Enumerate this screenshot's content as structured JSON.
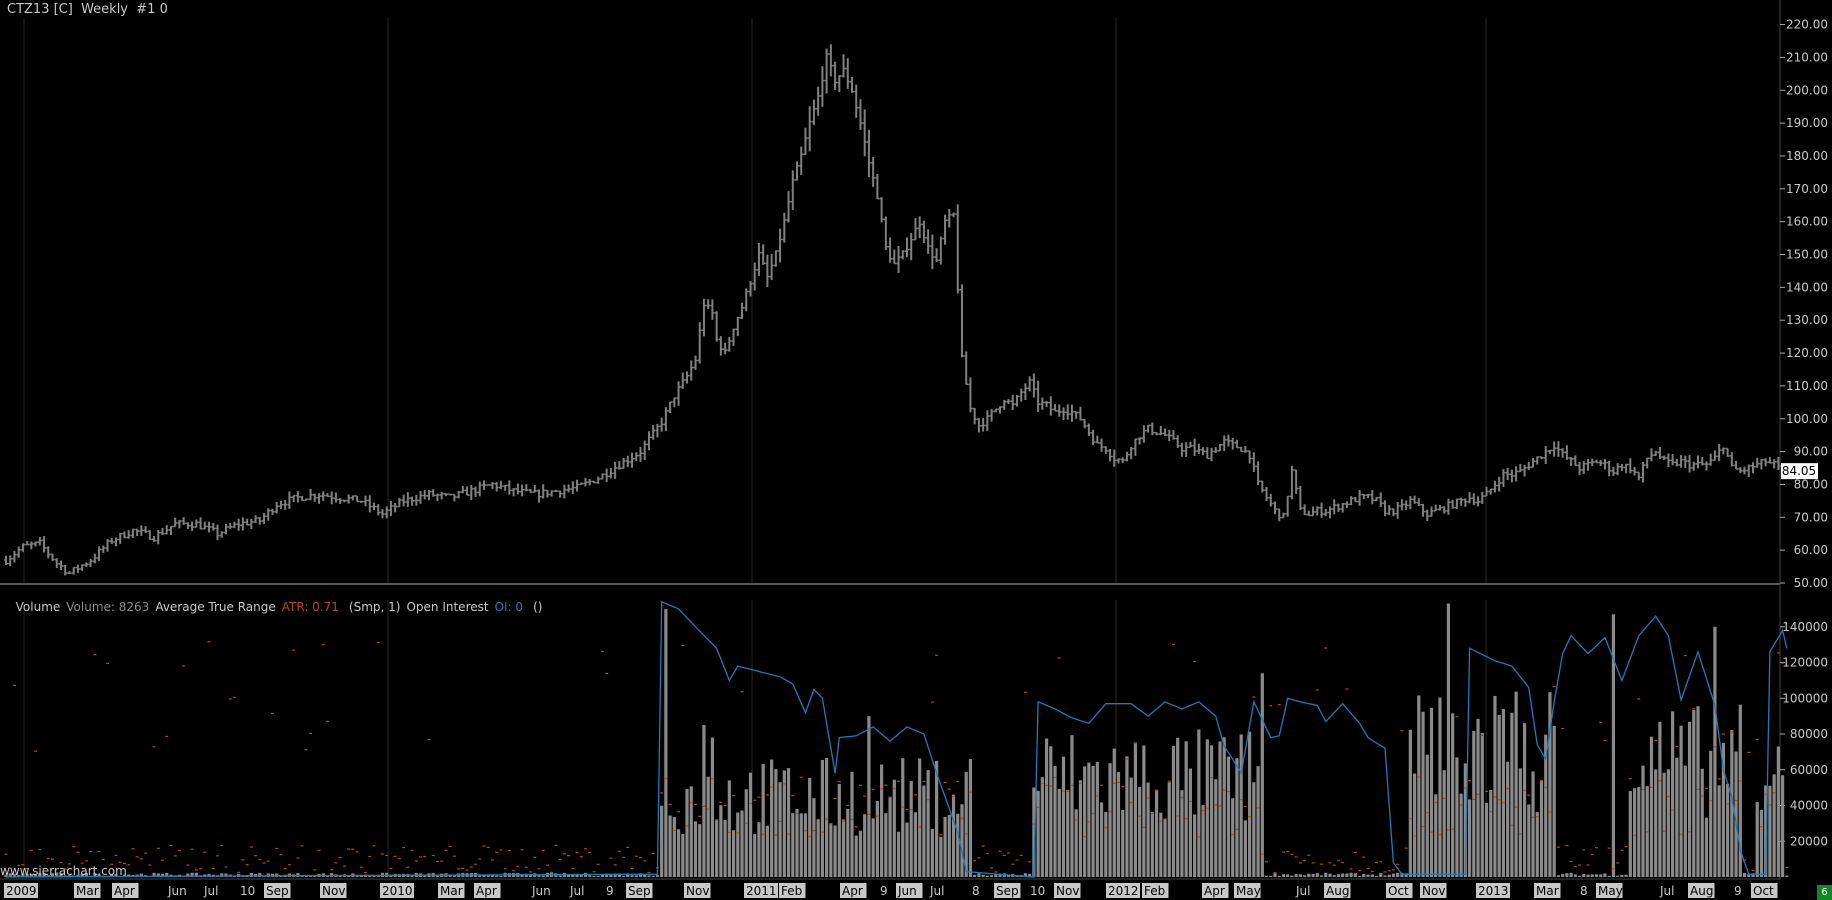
{
  "header": {
    "title": "CTZ13 [C]  Weekly  #1 0"
  },
  "study_header": {
    "volume_label": "Volume",
    "volume_value": "Volume: 8263",
    "atr_label": "Average True Range",
    "atr_value": "ATR: 0.71",
    "atr_params": "(Smp, 1)",
    "oi_label": "Open Interest",
    "oi_value": "OI: 0",
    "oi_params": "()"
  },
  "watermark": "www.sierrachart.com",
  "corner_badge": "6",
  "price_marker": "84.05",
  "colors": {
    "background": "#000000",
    "bars": "#808080",
    "volume_bars": "#8a8a8a",
    "open_interest": "#1f7ab8",
    "atr": "#b04a18",
    "axis_text": "#c8c8c8",
    "divider": "#777777",
    "gridline": "#262626",
    "price_marker_bg": "#ffffff",
    "badge": "#0f8a23"
  },
  "chart_data": [
    {
      "type": "ohlc",
      "name": "CTZ13 weekly price",
      "y_ticks": [
        "50.00",
        "60.00",
        "70.00",
        "80.00",
        "90.00",
        "100.00",
        "110.00",
        "120.00",
        "130.00",
        "140.00",
        "150.00",
        "160.00",
        "170.00",
        "180.00",
        "190.00",
        "200.00",
        "210.00",
        "220.00"
      ],
      "ylim": [
        50,
        222
      ],
      "last_price": 84.05,
      "anchors": [
        [
          0,
          57
        ],
        [
          4,
          61
        ],
        [
          8,
          62
        ],
        [
          12,
          56
        ],
        [
          15,
          53
        ],
        [
          20,
          57
        ],
        [
          25,
          63
        ],
        [
          30,
          66
        ],
        [
          35,
          64
        ],
        [
          40,
          68
        ],
        [
          45,
          68
        ],
        [
          50,
          65
        ],
        [
          55,
          68
        ],
        [
          60,
          69
        ],
        [
          64,
          74
        ],
        [
          69,
          76
        ],
        [
          74,
          77
        ],
        [
          79,
          76
        ],
        [
          84,
          75
        ],
        [
          89,
          71
        ],
        [
          94,
          75
        ],
        [
          100,
          77
        ],
        [
          105,
          76
        ],
        [
          110,
          78
        ],
        [
          115,
          80
        ],
        [
          120,
          78
        ],
        [
          125,
          77
        ],
        [
          130,
          78
        ],
        [
          135,
          79
        ],
        [
          140,
          82
        ],
        [
          145,
          86
        ],
        [
          150,
          90
        ],
        [
          155,
          99
        ],
        [
          158,
          107
        ],
        [
          161,
          113
        ],
        [
          163,
          118
        ],
        [
          165,
          135
        ],
        [
          167,
          132
        ],
        [
          168,
          124
        ],
        [
          170,
          120
        ],
        [
          172,
          128
        ],
        [
          174,
          134
        ],
        [
          176,
          142
        ],
        [
          178,
          150
        ],
        [
          180,
          143
        ],
        [
          182,
          150
        ],
        [
          184,
          160
        ],
        [
          186,
          172
        ],
        [
          188,
          180
        ],
        [
          190,
          190
        ],
        [
          192,
          198
        ],
        [
          194,
          210
        ],
        [
          196,
          203
        ],
        [
          198,
          206
        ],
        [
          200,
          200
        ],
        [
          202,
          190
        ],
        [
          204,
          178
        ],
        [
          206,
          168
        ],
        [
          208,
          152
        ],
        [
          210,
          147
        ],
        [
          212,
          150
        ],
        [
          214,
          155
        ],
        [
          216,
          160
        ],
        [
          218,
          152
        ],
        [
          220,
          148
        ],
        [
          222,
          160
        ],
        [
          224,
          162
        ],
        [
          226,
          118
        ],
        [
          228,
          103
        ],
        [
          230,
          98
        ],
        [
          232,
          100
        ],
        [
          234,
          103
        ],
        [
          236,
          106
        ],
        [
          238,
          104
        ],
        [
          240,
          108
        ],
        [
          242,
          111
        ],
        [
          244,
          105
        ],
        [
          246,
          104
        ],
        [
          248,
          102
        ],
        [
          250,
          103
        ],
        [
          252,
          102
        ],
        [
          254,
          100
        ],
        [
          256,
          96
        ],
        [
          258,
          92
        ],
        [
          260,
          91
        ],
        [
          262,
          88
        ],
        [
          264,
          87
        ],
        [
          266,
          92
        ],
        [
          268,
          95
        ],
        [
          270,
          97
        ],
        [
          272,
          96
        ],
        [
          274,
          95
        ],
        [
          276,
          93
        ],
        [
          278,
          91
        ],
        [
          280,
          91
        ],
        [
          282,
          90
        ],
        [
          284,
          89
        ],
        [
          286,
          91
        ],
        [
          288,
          93
        ],
        [
          290,
          92
        ],
        [
          292,
          91
        ],
        [
          294,
          89
        ],
        [
          296,
          80
        ],
        [
          298,
          76
        ],
        [
          300,
          72
        ],
        [
          302,
          70
        ],
        [
          304,
          84
        ],
        [
          306,
          72
        ],
        [
          308,
          71
        ],
        [
          310,
          72
        ],
        [
          312,
          72
        ],
        [
          314,
          73
        ],
        [
          316,
          74
        ],
        [
          318,
          75
        ],
        [
          320,
          76
        ],
        [
          322,
          76
        ],
        [
          324,
          75
        ],
        [
          326,
          72
        ],
        [
          328,
          72
        ],
        [
          330,
          73
        ],
        [
          332,
          75
        ],
        [
          334,
          73
        ],
        [
          336,
          71
        ],
        [
          338,
          72
        ],
        [
          340,
          73
        ],
        [
          342,
          74
        ],
        [
          344,
          75
        ],
        [
          346,
          76
        ],
        [
          348,
          75
        ],
        [
          350,
          77
        ],
        [
          352,
          80
        ],
        [
          354,
          83
        ],
        [
          356,
          83
        ],
        [
          358,
          84
        ],
        [
          360,
          86
        ],
        [
          362,
          88
        ],
        [
          364,
          90
        ],
        [
          366,
          92
        ],
        [
          368,
          89
        ],
        [
          370,
          87
        ],
        [
          372,
          85
        ],
        [
          374,
          86
        ],
        [
          376,
          87
        ],
        [
          378,
          86
        ],
        [
          380,
          84
        ],
        [
          382,
          86
        ],
        [
          384,
          85
        ],
        [
          386,
          82
        ],
        [
          388,
          88
        ],
        [
          390,
          90
        ],
        [
          392,
          87
        ],
        [
          394,
          86
        ],
        [
          396,
          87
        ],
        [
          398,
          86
        ],
        [
          400,
          86
        ],
        [
          402,
          86
        ],
        [
          404,
          88
        ],
        [
          406,
          92
        ],
        [
          408,
          85
        ],
        [
          410,
          84
        ],
        [
          412,
          85
        ],
        [
          414,
          86
        ],
        [
          416,
          87
        ],
        [
          418,
          86
        ],
        [
          420,
          84
        ]
      ]
    },
    {
      "type": "bar",
      "name": "Volume",
      "ylim": [
        0,
        155000
      ],
      "y_ticks": [
        "20000",
        "40000",
        "60000",
        "80000",
        "100000",
        "120000",
        "140000"
      ],
      "last_value": 8263,
      "active_segments": [
        [
          155,
          228,
          50000,
          20
        ],
        [
          243,
          296,
          62000,
          21
        ],
        [
          332,
          366,
          80000,
          22
        ],
        [
          384,
          410,
          72000,
          23
        ],
        [
          414,
          420,
          45000,
          24
        ]
      ],
      "spikes": [
        [
          156,
          150000
        ],
        [
          165,
          85000
        ],
        [
          167,
          78000
        ],
        [
          204,
          90000
        ],
        [
          228,
          66000
        ],
        [
          297,
          114000
        ],
        [
          341,
          153000
        ],
        [
          380,
          147000
        ],
        [
          404,
          140000
        ],
        [
          419,
          73000
        ]
      ]
    },
    {
      "type": "line",
      "name": "Open Interest",
      "anchors": [
        [
          0,
          0
        ],
        [
          143,
          1500
        ],
        [
          154,
          1500
        ],
        [
          155,
          154000
        ],
        [
          159,
          150000
        ],
        [
          163,
          140000
        ],
        [
          168,
          128000
        ],
        [
          171,
          110000
        ],
        [
          173,
          118000
        ],
        [
          178,
          115000
        ],
        [
          183,
          112000
        ],
        [
          186,
          108000
        ],
        [
          189,
          92000
        ],
        [
          191,
          105000
        ],
        [
          193,
          100000
        ],
        [
          196,
          58000
        ],
        [
          197,
          78000
        ],
        [
          201,
          79000
        ],
        [
          205,
          84000
        ],
        [
          209,
          76000
        ],
        [
          213,
          84000
        ],
        [
          217,
          80000
        ],
        [
          220,
          58000
        ],
        [
          225,
          25000
        ],
        [
          227,
          3000
        ],
        [
          243,
          0
        ],
        [
          244,
          98000
        ],
        [
          248,
          94000
        ],
        [
          252,
          89000
        ],
        [
          256,
          86000
        ],
        [
          260,
          97000
        ],
        [
          266,
          97000
        ],
        [
          270,
          90000
        ],
        [
          274,
          98000
        ],
        [
          278,
          94000
        ],
        [
          282,
          98000
        ],
        [
          286,
          90000
        ],
        [
          288,
          73000
        ],
        [
          290,
          66000
        ],
        [
          292,
          58000
        ],
        [
          295,
          98000
        ],
        [
          299,
          78000
        ],
        [
          301,
          79000
        ],
        [
          303,
          100000
        ],
        [
          306,
          98000
        ],
        [
          310,
          96000
        ],
        [
          312,
          87000
        ],
        [
          316,
          97000
        ],
        [
          320,
          86000
        ],
        [
          322,
          78000
        ],
        [
          326,
          72000
        ],
        [
          328,
          8000
        ],
        [
          330,
          1500
        ],
        [
          345,
          1500
        ],
        [
          346,
          128000
        ],
        [
          352,
          121000
        ],
        [
          356,
          118000
        ],
        [
          360,
          106000
        ],
        [
          362,
          74000
        ],
        [
          364,
          66000
        ],
        [
          366,
          98000
        ],
        [
          368,
          125000
        ],
        [
          370,
          135000
        ],
        [
          374,
          125000
        ],
        [
          378,
          134000
        ],
        [
          382,
          110000
        ],
        [
          386,
          135000
        ],
        [
          390,
          146000
        ],
        [
          393,
          135000
        ],
        [
          396,
          99000
        ],
        [
          400,
          126000
        ],
        [
          404,
          96000
        ],
        [
          406,
          60000
        ],
        [
          408,
          45000
        ],
        [
          410,
          15000
        ],
        [
          412,
          1500
        ],
        [
          416,
          1500
        ],
        [
          417,
          126000
        ],
        [
          420,
          138000
        ],
        [
          421,
          128000
        ]
      ]
    },
    {
      "type": "scatter",
      "name": "Average True Range",
      "last_value": 0.71
    }
  ],
  "x_axis": {
    "labels": [
      {
        "text": "2009",
        "x": 6,
        "h": true
      },
      {
        "text": "Mar",
        "x": 76,
        "h": true
      },
      {
        "text": "Apr",
        "x": 114,
        "h": true
      },
      {
        "text": "Jun",
        "x": 168,
        "h": false
      },
      {
        "text": "Jul",
        "x": 204,
        "h": false
      },
      {
        "text": "10",
        "x": 240,
        "h": false
      },
      {
        "text": "Sep",
        "x": 266,
        "h": true
      },
      {
        "text": "Nov",
        "x": 322,
        "h": true
      },
      {
        "text": "2010",
        "x": 382,
        "h": true
      },
      {
        "text": "Mar",
        "x": 440,
        "h": true
      },
      {
        "text": "Apr",
        "x": 476,
        "h": true
      },
      {
        "text": "Jun",
        "x": 532,
        "h": false
      },
      {
        "text": "Jul",
        "x": 570,
        "h": false
      },
      {
        "text": "9",
        "x": 606,
        "h": false
      },
      {
        "text": "Sep",
        "x": 628,
        "h": true
      },
      {
        "text": "Nov",
        "x": 686,
        "h": true
      },
      {
        "text": "2011",
        "x": 746,
        "h": true
      },
      {
        "text": "Feb",
        "x": 781,
        "h": true
      },
      {
        "text": "Apr",
        "x": 842,
        "h": true
      },
      {
        "text": "9",
        "x": 880,
        "h": false
      },
      {
        "text": "Jun",
        "x": 898,
        "h": true
      },
      {
        "text": "Jul",
        "x": 930,
        "h": false
      },
      {
        "text": "8",
        "x": 972,
        "h": false
      },
      {
        "text": "Sep",
        "x": 996,
        "h": true
      },
      {
        "text": "10",
        "x": 1030,
        "h": false
      },
      {
        "text": "Nov",
        "x": 1056,
        "h": true
      },
      {
        "text": "2012",
        "x": 1108,
        "h": true
      },
      {
        "text": "Feb",
        "x": 1144,
        "h": true
      },
      {
        "text": "Apr",
        "x": 1204,
        "h": true
      },
      {
        "text": "May",
        "x": 1236,
        "h": true
      },
      {
        "text": "Jul",
        "x": 1296,
        "h": false
      },
      {
        "text": "Aug",
        "x": 1326,
        "h": true
      },
      {
        "text": "Oct",
        "x": 1388,
        "h": true
      },
      {
        "text": "Nov",
        "x": 1422,
        "h": true
      },
      {
        "text": "2013",
        "x": 1478,
        "h": true
      },
      {
        "text": "Mar",
        "x": 1536,
        "h": true
      },
      {
        "text": "8",
        "x": 1580,
        "h": false
      },
      {
        "text": "May",
        "x": 1598,
        "h": true
      },
      {
        "text": "Jul",
        "x": 1660,
        "h": false
      },
      {
        "text": "Aug",
        "x": 1690,
        "h": true
      },
      {
        "text": "9",
        "x": 1734,
        "h": false
      },
      {
        "text": "Oct",
        "x": 1753,
        "h": true
      }
    ]
  }
}
